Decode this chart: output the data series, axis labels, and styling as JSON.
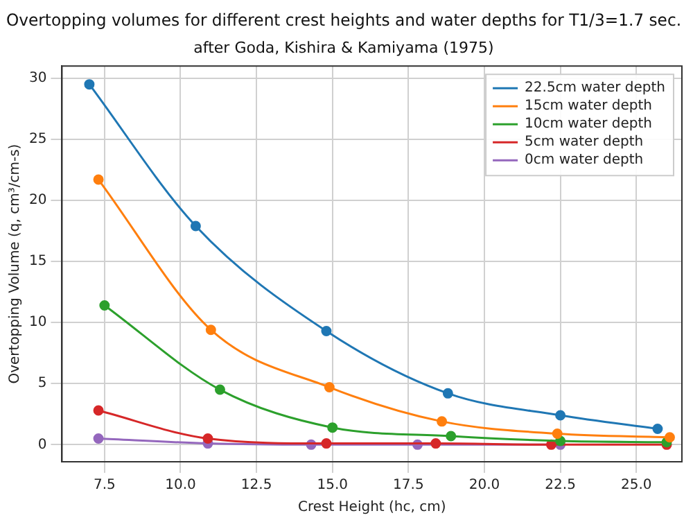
{
  "chart_data": {
    "type": "line",
    "title": "Overtopping volumes for different crest heights and water depths for T1/3=1.7 sec.",
    "subtitle": "after Goda, Kishira & Kamiyama (1975)",
    "xlabel": "Crest Height (hc, cm)",
    "ylabel": "Overtopping Volume (q, cm³/cm-s)",
    "xlim": [
      6.1,
      26.5
    ],
    "xticks": [
      {
        "value": 7.5,
        "label": "7.5"
      },
      {
        "value": 10,
        "label": "10.0"
      },
      {
        "value": 12.5,
        "label": "12.5"
      },
      {
        "value": 15,
        "label": "15.0"
      },
      {
        "value": 17.5,
        "label": "17.5"
      },
      {
        "value": 20,
        "label": "20.0"
      },
      {
        "value": 22.5,
        "label": "22.5"
      },
      {
        "value": 25,
        "label": "25.0"
      }
    ],
    "ylim": [
      -1.4,
      31
    ],
    "yticks": [
      0,
      5,
      10,
      15,
      20,
      25,
      30
    ],
    "grid": true,
    "legend": "top right",
    "marker": "circle",
    "series": [
      {
        "name": "22.5cm water depth",
        "color": "#1f77b4",
        "x": [
          7.0,
          10.5,
          14.8,
          18.8,
          22.5,
          25.7
        ],
        "values": [
          29.5,
          17.9,
          9.3,
          4.2,
          2.4,
          1.3
        ]
      },
      {
        "name": "15cm water depth",
        "color": "#ff7f0e",
        "x": [
          7.3,
          11.0,
          14.9,
          18.6,
          22.4,
          26.1
        ],
        "values": [
          21.7,
          9.4,
          4.7,
          1.9,
          0.9,
          0.6
        ]
      },
      {
        "name": "10cm water depth",
        "color": "#2ca02c",
        "x": [
          7.5,
          11.3,
          15.0,
          18.9,
          22.5,
          26.0
        ],
        "values": [
          11.4,
          4.5,
          1.4,
          0.7,
          0.3,
          0.2
        ]
      },
      {
        "name": "5cm water depth",
        "color": "#d62728",
        "x": [
          7.3,
          10.9,
          14.8,
          18.4,
          22.2,
          26.0
        ],
        "values": [
          2.8,
          0.5,
          0.1,
          0.1,
          0,
          0
        ]
      },
      {
        "name": "0cm water depth",
        "color": "#9467bd",
        "x": [
          7.3,
          10.9,
          14.3,
          17.8,
          22.5
        ],
        "values": [
          0.5,
          0.1,
          0,
          0,
          0
        ]
      }
    ]
  }
}
